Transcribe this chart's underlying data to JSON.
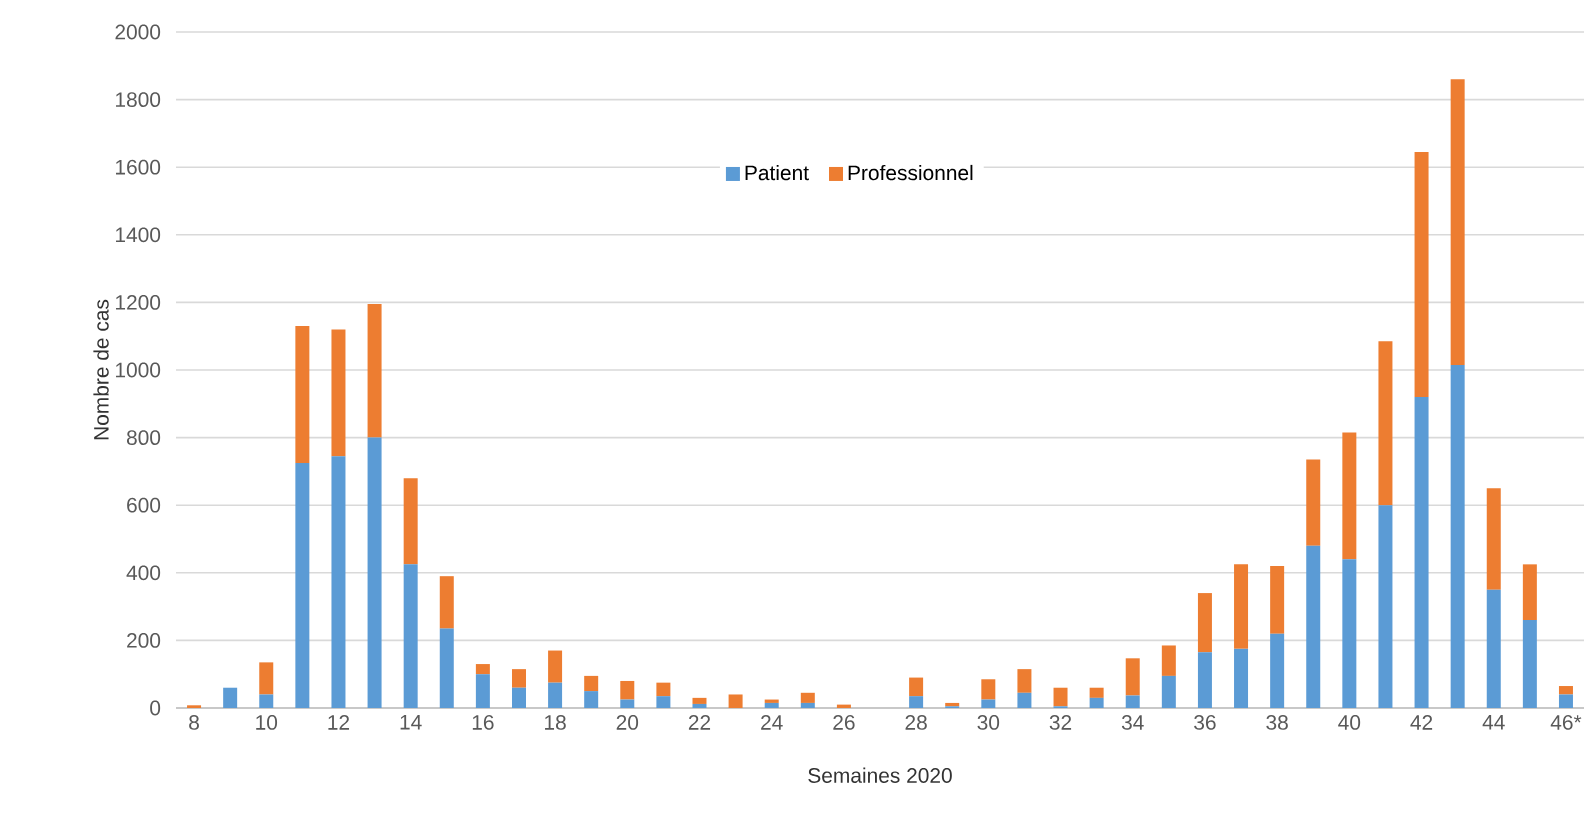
{
  "chart_data": {
    "type": "bar",
    "stacked": true,
    "xlabel": "Semaines 2020",
    "ylabel": "Nombre de cas",
    "categories": [
      "8",
      null,
      "10",
      null,
      "12",
      null,
      "14",
      null,
      "16",
      null,
      "18",
      null,
      "20",
      null,
      "22",
      null,
      "24",
      null,
      "26",
      null,
      "28",
      null,
      "30",
      null,
      "32",
      null,
      "34",
      null,
      "36",
      null,
      "38",
      null,
      "40",
      null,
      "42",
      null,
      "44",
      null,
      "46*"
    ],
    "series": [
      {
        "name": "Patient",
        "color": "#5b9bd5",
        "values": [
          0,
          60,
          40,
          725,
          745,
          800,
          425,
          235,
          100,
          60,
          75,
          50,
          25,
          35,
          12,
          0,
          15,
          15,
          0,
          0,
          35,
          5,
          25,
          45,
          5,
          30,
          37,
          95,
          165,
          175,
          220,
          480,
          440,
          600,
          920,
          1015,
          350,
          260,
          40
        ]
      },
      {
        "name": "Professionnel",
        "color": "#ed7d31",
        "values": [
          8,
          0,
          95,
          405,
          375,
          395,
          255,
          155,
          30,
          55,
          95,
          45,
          55,
          40,
          18,
          40,
          10,
          30,
          10,
          0,
          55,
          10,
          60,
          70,
          55,
          30,
          110,
          90,
          175,
          250,
          200,
          255,
          375,
          485,
          725,
          845,
          300,
          165,
          25
        ]
      }
    ],
    "ylim": [
      0,
      2000
    ],
    "yticks": [
      0,
      200,
      400,
      600,
      800,
      1000,
      1200,
      1400,
      1600,
      1800,
      2000
    ],
    "grid": "y",
    "legend": "top"
  }
}
